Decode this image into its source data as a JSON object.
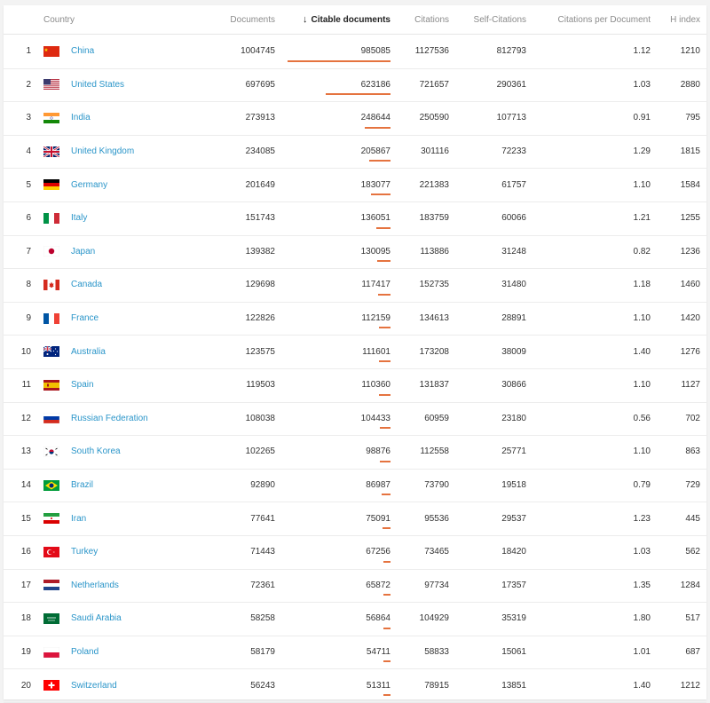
{
  "table": {
    "headers": {
      "country": "Country",
      "documents": "Documents",
      "citable": "Citable documents",
      "citations": "Citations",
      "self_citations": "Self-Citations",
      "cpd": "Citations per Document",
      "hindex": "H index"
    },
    "sort_arrow": "↓",
    "bar_color": "#e5733f",
    "link_color": "#2a95c9",
    "rows": [
      {
        "rank": "1",
        "country": "China",
        "flag": "flag-china-icon",
        "documents": "1004745",
        "citable": "985085",
        "citations": "1127536",
        "self": "812793",
        "cpd": "1.12",
        "h": "1210"
      },
      {
        "rank": "2",
        "country": "United States",
        "flag": "flag-united-states-icon",
        "documents": "697695",
        "citable": "623186",
        "citations": "721657",
        "self": "290361",
        "cpd": "1.03",
        "h": "2880"
      },
      {
        "rank": "3",
        "country": "India",
        "flag": "flag-india-icon",
        "documents": "273913",
        "citable": "248644",
        "citations": "250590",
        "self": "107713",
        "cpd": "0.91",
        "h": "795"
      },
      {
        "rank": "4",
        "country": "United Kingdom",
        "flag": "flag-united-kingdom-icon",
        "documents": "234085",
        "citable": "205867",
        "citations": "301116",
        "self": "72233",
        "cpd": "1.29",
        "h": "1815"
      },
      {
        "rank": "5",
        "country": "Germany",
        "flag": "flag-germany-icon",
        "documents": "201649",
        "citable": "183077",
        "citations": "221383",
        "self": "61757",
        "cpd": "1.10",
        "h": "1584"
      },
      {
        "rank": "6",
        "country": "Italy",
        "flag": "flag-italy-icon",
        "documents": "151743",
        "citable": "136051",
        "citations": "183759",
        "self": "60066",
        "cpd": "1.21",
        "h": "1255"
      },
      {
        "rank": "7",
        "country": "Japan",
        "flag": "flag-japan-icon",
        "documents": "139382",
        "citable": "130095",
        "citations": "113886",
        "self": "31248",
        "cpd": "0.82",
        "h": "1236"
      },
      {
        "rank": "8",
        "country": "Canada",
        "flag": "flag-canada-icon",
        "documents": "129698",
        "citable": "117417",
        "citations": "152735",
        "self": "31480",
        "cpd": "1.18",
        "h": "1460"
      },
      {
        "rank": "9",
        "country": "France",
        "flag": "flag-france-icon",
        "documents": "122826",
        "citable": "112159",
        "citations": "134613",
        "self": "28891",
        "cpd": "1.10",
        "h": "1420"
      },
      {
        "rank": "10",
        "country": "Australia",
        "flag": "flag-australia-icon",
        "documents": "123575",
        "citable": "111601",
        "citations": "173208",
        "self": "38009",
        "cpd": "1.40",
        "h": "1276"
      },
      {
        "rank": "11",
        "country": "Spain",
        "flag": "flag-spain-icon",
        "documents": "119503",
        "citable": "110360",
        "citations": "131837",
        "self": "30866",
        "cpd": "1.10",
        "h": "1127"
      },
      {
        "rank": "12",
        "country": "Russian Federation",
        "flag": "flag-russia-icon",
        "documents": "108038",
        "citable": "104433",
        "citations": "60959",
        "self": "23180",
        "cpd": "0.56",
        "h": "702"
      },
      {
        "rank": "13",
        "country": "South Korea",
        "flag": "flag-south-korea-icon",
        "documents": "102265",
        "citable": "98876",
        "citations": "112558",
        "self": "25771",
        "cpd": "1.10",
        "h": "863"
      },
      {
        "rank": "14",
        "country": "Brazil",
        "flag": "flag-brazil-icon",
        "documents": "92890",
        "citable": "86987",
        "citations": "73790",
        "self": "19518",
        "cpd": "0.79",
        "h": "729"
      },
      {
        "rank": "15",
        "country": "Iran",
        "flag": "flag-iran-icon",
        "documents": "77641",
        "citable": "75091",
        "citations": "95536",
        "self": "29537",
        "cpd": "1.23",
        "h": "445"
      },
      {
        "rank": "16",
        "country": "Turkey",
        "flag": "flag-turkey-icon",
        "documents": "71443",
        "citable": "67256",
        "citations": "73465",
        "self": "18420",
        "cpd": "1.03",
        "h": "562"
      },
      {
        "rank": "17",
        "country": "Netherlands",
        "flag": "flag-netherlands-icon",
        "documents": "72361",
        "citable": "65872",
        "citations": "97734",
        "self": "17357",
        "cpd": "1.35",
        "h": "1284"
      },
      {
        "rank": "18",
        "country": "Saudi Arabia",
        "flag": "flag-saudi-arabia-icon",
        "documents": "58258",
        "citable": "56864",
        "citations": "104929",
        "self": "35319",
        "cpd": "1.80",
        "h": "517"
      },
      {
        "rank": "19",
        "country": "Poland",
        "flag": "flag-poland-icon",
        "documents": "58179",
        "citable": "54711",
        "citations": "58833",
        "self": "15061",
        "cpd": "1.01",
        "h": "687"
      },
      {
        "rank": "20",
        "country": "Switzerland",
        "flag": "flag-switzerland-icon",
        "documents": "56243",
        "citable": "51311",
        "citations": "78915",
        "self": "13851",
        "cpd": "1.40",
        "h": "1212"
      }
    ]
  }
}
